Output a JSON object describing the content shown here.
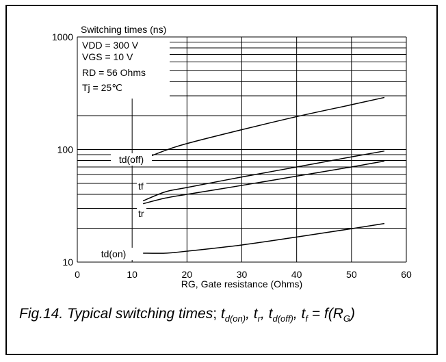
{
  "chart_data": {
    "type": "line",
    "title": "Switching times (ns)",
    "xlabel": "RG, Gate resistance (Ohms)",
    "ylabel": "",
    "xlim": [
      0,
      60
    ],
    "ylim": [
      10,
      1000
    ],
    "y_scale": "log",
    "grid": true,
    "x_ticks": [
      "0",
      "10",
      "20",
      "30",
      "40",
      "50",
      "60"
    ],
    "y_ticks": [
      "10",
      "100",
      "1000"
    ],
    "conditions": [
      "VDD = 300 V",
      "VGS = 10 V",
      "RD = 56 Ohms",
      "Tj = 25℃"
    ],
    "series": [
      {
        "name": "td(off)",
        "x": [
          12,
          16,
          20,
          30,
          40,
          50,
          56
        ],
        "y": [
          82,
          98,
          113,
          150,
          196,
          250,
          290
        ]
      },
      {
        "name": "tf",
        "x": [
          12,
          16,
          20,
          30,
          40,
          50,
          56
        ],
        "y": [
          35,
          42,
          46,
          57,
          70,
          86,
          97
        ]
      },
      {
        "name": "tr",
        "x": [
          12,
          16,
          20,
          30,
          40,
          50,
          56
        ],
        "y": [
          33,
          37,
          40,
          48,
          58,
          70,
          79
        ]
      },
      {
        "name": "td(on)",
        "x": [
          12,
          16,
          20,
          30,
          40,
          50,
          56
        ],
        "y": [
          12,
          12,
          12.5,
          14.2,
          16.7,
          19.8,
          22
        ]
      }
    ]
  },
  "caption": {
    "prefix": "Fig.14.  Typical switching times",
    "sep": ";",
    "t": "t",
    "d_on": "d(on)",
    "r": "r",
    "d_off": "d(off)",
    "f": "f",
    "eq": " = f(R",
    "G": "G",
    "close": ")"
  }
}
